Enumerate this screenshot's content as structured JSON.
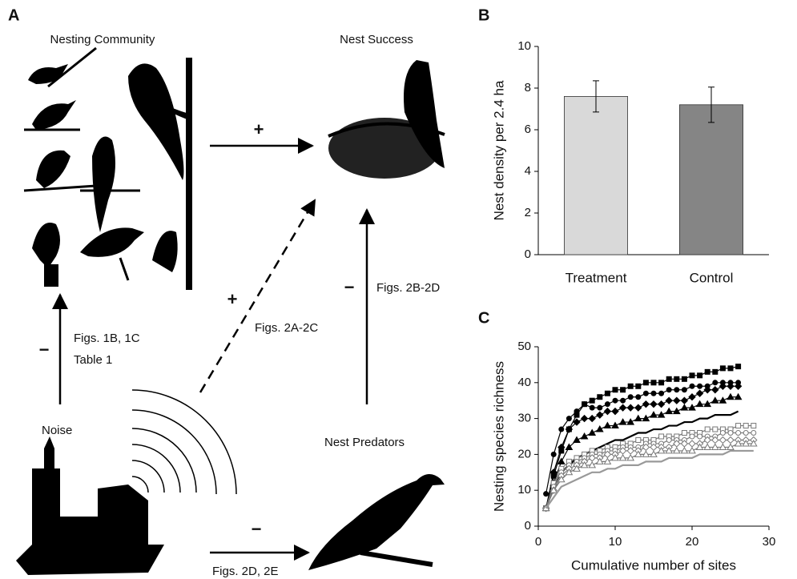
{
  "panel_labels": [
    "A",
    "B",
    "C"
  ],
  "diagram": {
    "nodes": [
      {
        "label": "Nesting Community"
      },
      {
        "label": "Nest Success"
      },
      {
        "label": "Noise"
      },
      {
        "label": "Nest Predators"
      }
    ],
    "edges": [
      {
        "sign": "+",
        "labels": []
      },
      {
        "sign": "+",
        "labels": [
          "Figs. 2A-2C"
        ]
      },
      {
        "sign": "−",
        "labels": [
          "Figs. 2B-2D"
        ]
      },
      {
        "sign": "−",
        "labels": [
          "Figs. 1B, 1C",
          "Table 1"
        ]
      },
      {
        "sign": "−",
        "labels": [
          "Figs. 2D, 2E"
        ]
      }
    ]
  },
  "chart_data": [
    {
      "type": "bar",
      "ylabel": "Nest density per 2.4 ha",
      "categories": [
        "Treatment",
        "Control"
      ],
      "values": [
        7.6,
        7.2
      ],
      "errors": [
        0.75,
        0.85
      ],
      "colors": [
        "#d9d9d9",
        "#858585"
      ],
      "ylim": [
        0,
        10
      ],
      "yticks": [
        0,
        2,
        4,
        6,
        8,
        10
      ]
    },
    {
      "type": "line",
      "xlabel": "Cumulative number of sites",
      "ylabel": "Nesting species richness",
      "x": [
        1,
        2,
        3,
        4,
        5,
        6,
        7,
        8,
        9,
        10,
        11,
        12,
        13,
        14,
        15,
        16,
        17,
        18,
        19,
        20,
        21,
        22,
        23,
        24,
        25,
        26,
        27,
        28
      ],
      "xlim": [
        0,
        30
      ],
      "xticks": [
        0,
        10,
        20,
        30
      ],
      "ylim": [
        0,
        50
      ],
      "yticks": [
        0,
        10,
        20,
        30,
        40,
        50
      ],
      "series": [
        {
          "color": "#000000",
          "marker": "square",
          "filled": true,
          "values": [
            5,
            14,
            21,
            27,
            31,
            34,
            35,
            36,
            37,
            38,
            38,
            39,
            39,
            40,
            40,
            40,
            41,
            41,
            41,
            42,
            42,
            43,
            43,
            44,
            44,
            44.5,
            null,
            null
          ]
        },
        {
          "color": "#000000",
          "marker": "circle",
          "filled": true,
          "values": [
            9,
            20,
            27,
            30,
            32,
            34,
            33,
            33,
            34,
            35,
            35,
            36,
            36,
            37,
            37,
            37,
            38,
            38,
            38,
            39,
            39,
            39,
            40,
            40,
            40,
            40,
            null,
            null
          ]
        },
        {
          "color": "#000000",
          "marker": "diamond",
          "filled": true,
          "values": [
            5,
            15,
            22,
            27,
            29,
            30,
            30,
            31,
            32,
            32,
            33,
            33,
            33,
            34,
            34,
            34,
            35,
            35,
            35,
            36,
            37,
            38,
            38,
            39,
            39,
            39,
            null,
            null
          ]
        },
        {
          "color": "#000000",
          "marker": "triangle",
          "filled": true,
          "values": [
            5,
            12,
            18,
            22,
            24,
            25,
            26,
            27,
            28,
            28,
            29,
            29,
            30,
            30,
            31,
            31,
            32,
            32,
            33,
            33,
            34,
            34,
            35,
            35,
            36,
            36,
            null,
            null
          ]
        },
        {
          "color": "#000000",
          "marker": null,
          "filled": true,
          "values": [
            5,
            11,
            15,
            17,
            19,
            20,
            21,
            22,
            23,
            24,
            24,
            25,
            26,
            26,
            27,
            27,
            28,
            28,
            29,
            29,
            30,
            30,
            31,
            31,
            31,
            32,
            null,
            null
          ]
        },
        {
          "color": "#777777",
          "marker": "square",
          "filled": false,
          "values": [
            5,
            12,
            16,
            18,
            19,
            20,
            21,
            21,
            22,
            22,
            23,
            23,
            24,
            24,
            24,
            25,
            25,
            25,
            26,
            26,
            26,
            27,
            27,
            27,
            27,
            28,
            28,
            28
          ]
        },
        {
          "color": "#777777",
          "marker": "circle",
          "filled": false,
          "values": [
            5,
            11,
            15,
            17,
            18,
            19,
            20,
            20,
            21,
            21,
            22,
            22,
            22,
            23,
            23,
            23,
            24,
            24,
            24,
            25,
            25,
            25,
            25,
            26,
            26,
            26,
            26,
            26
          ]
        },
        {
          "color": "#777777",
          "marker": "diamond",
          "filled": false,
          "values": [
            5,
            10,
            14,
            16,
            17,
            18,
            19,
            19,
            20,
            20,
            21,
            21,
            21,
            22,
            22,
            22,
            22,
            23,
            23,
            23,
            23,
            24,
            24,
            24,
            24,
            24,
            24,
            24
          ]
        },
        {
          "color": "#777777",
          "marker": "triangle",
          "filled": false,
          "values": [
            5,
            10,
            13,
            15,
            16,
            17,
            17,
            18,
            18,
            19,
            19,
            19,
            20,
            20,
            20,
            21,
            21,
            21,
            21,
            21,
            22,
            22,
            22,
            22,
            22,
            23,
            23,
            23
          ]
        },
        {
          "color": "#999999",
          "marker": null,
          "filled": false,
          "values": [
            5,
            8,
            11,
            12,
            13,
            14,
            15,
            15,
            16,
            16,
            17,
            17,
            17,
            18,
            18,
            18,
            19,
            19,
            19,
            19,
            20,
            20,
            20,
            20,
            21,
            21,
            21,
            21
          ]
        }
      ]
    }
  ]
}
